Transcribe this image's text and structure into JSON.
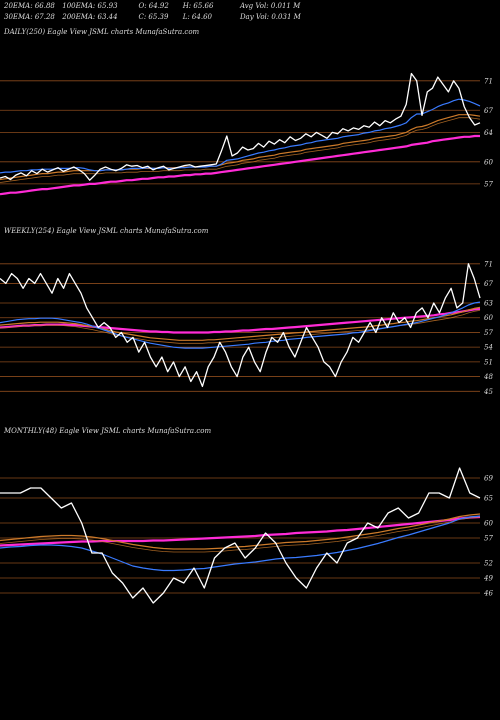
{
  "header": {
    "row1": [
      "20EMA: 66.88",
      "100EMA: 65.93",
      "O: 64.92",
      "H: 65.66",
      "Avg Vol: 0.011 M"
    ],
    "row2": [
      "30EMA: 67.28",
      "200EMA: 63.44",
      "C: 65.39",
      "L: 64.60",
      "Day Vol: 0.031 M"
    ]
  },
  "colors": {
    "background": "#000000",
    "price": "#ffffff",
    "ema_fast": "#3a7bff",
    "ema_slow": "#cc7a2a",
    "ema_long": "#ff2bd6",
    "grid": "#8a4a1c"
  },
  "chart_data": [
    {
      "type": "line",
      "name": "daily",
      "label": "DAILY(250) Eagle  View  JSML  charts MunafaSutra.com",
      "ylim": [
        54,
        76
      ],
      "yticks": [
        71,
        67,
        64,
        60,
        57
      ],
      "grid": true,
      "series": [
        {
          "role": "price",
          "color": "#ffffff",
          "values": [
            57.8,
            58.0,
            57.6,
            58.2,
            58.5,
            58.1,
            58.8,
            58.4,
            59.0,
            58.6,
            58.9,
            59.2,
            58.7,
            59.0,
            59.3,
            58.9,
            58.4,
            57.5,
            58.2,
            59.0,
            59.3,
            59.0,
            58.8,
            59.1,
            59.6,
            59.4,
            59.5,
            59.2,
            59.4,
            58.9,
            59.2,
            59.4,
            58.9,
            59.1,
            59.3,
            59.5,
            59.6,
            59.3,
            59.4,
            59.5,
            59.6,
            59.7,
            61.5,
            63.5,
            60.8,
            61.2,
            62.0,
            61.6,
            61.8,
            62.5,
            62.0,
            62.8,
            62.4,
            63.0,
            62.6,
            63.4,
            62.9,
            63.2,
            63.8,
            63.4,
            64.0,
            63.6,
            63.2,
            64.0,
            63.8,
            64.5,
            64.2,
            64.6,
            64.4,
            64.9,
            64.7,
            65.4,
            64.9,
            65.6,
            65.3,
            65.8,
            66.2,
            67.8,
            72.0,
            71.0,
            66.3,
            69.5,
            70.0,
            71.5,
            70.5,
            69.5,
            71.0,
            70.0,
            67.5,
            66.0,
            65.0,
            65.3
          ]
        },
        {
          "role": "ema_fast",
          "color": "#3a7bff",
          "values": [
            58.5,
            58.6,
            58.6,
            58.7,
            58.8,
            58.8,
            58.9,
            58.9,
            59.0,
            59.0,
            59.0,
            59.1,
            59.1,
            59.1,
            59.2,
            59.2,
            59.1,
            58.9,
            58.8,
            58.8,
            58.9,
            58.9,
            58.9,
            58.9,
            59.0,
            59.1,
            59.1,
            59.1,
            59.2,
            59.1,
            59.1,
            59.2,
            59.1,
            59.1,
            59.2,
            59.2,
            59.3,
            59.3,
            59.3,
            59.3,
            59.4,
            59.4,
            59.7,
            60.2,
            60.3,
            60.4,
            60.6,
            60.8,
            61.0,
            61.2,
            61.3,
            61.5,
            61.6,
            61.8,
            61.9,
            62.1,
            62.2,
            62.3,
            62.5,
            62.6,
            62.8,
            62.9,
            63.0,
            63.1,
            63.2,
            63.4,
            63.5,
            63.6,
            63.7,
            63.9,
            64.0,
            64.2,
            64.3,
            64.5,
            64.6,
            64.8,
            65.0,
            65.3,
            66.0,
            66.5,
            66.5,
            66.8,
            67.1,
            67.5,
            67.8,
            68.0,
            68.3,
            68.5,
            68.4,
            68.2,
            67.9,
            67.6
          ]
        },
        {
          "role": "ema_slow",
          "color": "#cc7a2a",
          "values": [
            57.6,
            57.7,
            57.8,
            57.9,
            58.0,
            58.1,
            58.2,
            58.3,
            58.4,
            58.4,
            58.5,
            58.6,
            58.6,
            58.7,
            58.8,
            58.8,
            58.8,
            58.8,
            58.8,
            58.8,
            58.9,
            58.9,
            58.9,
            58.9,
            59.0,
            59.0,
            59.0,
            59.1,
            59.1,
            59.1,
            59.1,
            59.2,
            59.2,
            59.2,
            59.2,
            59.3,
            59.3,
            59.3,
            59.3,
            59.4,
            59.4,
            59.4,
            59.6,
            59.8,
            59.9,
            60.0,
            60.2,
            60.3,
            60.4,
            60.6,
            60.7,
            60.8,
            60.9,
            61.1,
            61.2,
            61.3,
            61.4,
            61.5,
            61.7,
            61.8,
            61.9,
            62.0,
            62.1,
            62.2,
            62.3,
            62.5,
            62.6,
            62.7,
            62.8,
            62.9,
            63.0,
            63.2,
            63.3,
            63.4,
            63.5,
            63.6,
            63.8,
            64.0,
            64.4,
            64.7,
            64.8,
            65.0,
            65.3,
            65.6,
            65.8,
            66.0,
            66.2,
            66.4,
            66.4,
            66.4,
            66.3,
            66.2
          ]
        },
        {
          "role": "ema_long",
          "color": "#ff2bd6",
          "values": [
            55.6,
            55.7,
            55.8,
            55.8,
            55.9,
            56.0,
            56.1,
            56.2,
            56.3,
            56.3,
            56.4,
            56.5,
            56.6,
            56.7,
            56.8,
            56.8,
            56.9,
            57.0,
            57.0,
            57.1,
            57.2,
            57.3,
            57.3,
            57.4,
            57.5,
            57.5,
            57.6,
            57.7,
            57.7,
            57.8,
            57.9,
            57.9,
            58.0,
            58.0,
            58.1,
            58.2,
            58.2,
            58.3,
            58.3,
            58.4,
            58.4,
            58.5,
            58.6,
            58.7,
            58.8,
            58.9,
            59.0,
            59.1,
            59.2,
            59.3,
            59.4,
            59.5,
            59.6,
            59.7,
            59.8,
            59.9,
            60.0,
            60.1,
            60.2,
            60.3,
            60.4,
            60.5,
            60.6,
            60.7,
            60.8,
            60.9,
            61.0,
            61.1,
            61.2,
            61.3,
            61.4,
            61.5,
            61.6,
            61.7,
            61.8,
            61.9,
            62.0,
            62.1,
            62.3,
            62.4,
            62.5,
            62.6,
            62.8,
            62.9,
            63.0,
            63.1,
            63.2,
            63.3,
            63.4,
            63.4,
            63.5,
            63.5
          ]
        }
      ]
    },
    {
      "type": "line",
      "name": "weekly",
      "label": "WEEKLY(254) Eagle  View  JSML  charts MunafaSutra.com",
      "ylim": [
        42,
        73
      ],
      "yticks": [
        71,
        67,
        63,
        60,
        57,
        54,
        51,
        48,
        45
      ],
      "grid": true,
      "series": [
        {
          "role": "price",
          "color": "#ffffff",
          "values": [
            68,
            67,
            69,
            68,
            66,
            68,
            67,
            69,
            67,
            65,
            68,
            66,
            69,
            67,
            65,
            62,
            60,
            58,
            59,
            58,
            56,
            57,
            55,
            56,
            53,
            55,
            52,
            50,
            52,
            49,
            51,
            48,
            50,
            47,
            49,
            46,
            50,
            52,
            55,
            53,
            50,
            48,
            52,
            54,
            51,
            49,
            53,
            56,
            55,
            57,
            54,
            52,
            55,
            58,
            56,
            54,
            51,
            50,
            48,
            51,
            53,
            56,
            55,
            57,
            59,
            57,
            60,
            58,
            61,
            59,
            60,
            58,
            61,
            62,
            60,
            63,
            61,
            64,
            66,
            62,
            63,
            71,
            68,
            64
          ]
        },
        {
          "role": "ema_fast",
          "color": "#3a7bff",
          "values": [
            59,
            59.2,
            59.4,
            59.6,
            59.7,
            59.8,
            59.8,
            59.9,
            59.9,
            59.9,
            59.8,
            59.6,
            59.4,
            59.2,
            59.0,
            58.7,
            58.3,
            57.9,
            57.5,
            57.1,
            56.7,
            56.3,
            56.0,
            55.7,
            55.4,
            55.1,
            54.8,
            54.6,
            54.4,
            54.2,
            54.0,
            53.9,
            53.8,
            53.8,
            53.8,
            53.8,
            53.9,
            54.0,
            54.1,
            54.2,
            54.3,
            54.4,
            54.5,
            54.6,
            54.8,
            54.9,
            55.0,
            55.2,
            55.3,
            55.4,
            55.6,
            55.7,
            55.8,
            56.0,
            56.1,
            56.2,
            56.3,
            56.4,
            56.5,
            56.6,
            56.7,
            56.9,
            57.0,
            57.2,
            57.4,
            57.6,
            57.8,
            58.0,
            58.2,
            58.4,
            58.6,
            58.8,
            59.0,
            59.3,
            59.6,
            59.9,
            60.2,
            60.6,
            61.0,
            61.5,
            62.0,
            62.6,
            63.0,
            63.2
          ]
        },
        {
          "role": "ema_slow",
          "color": "#cc7a2a",
          "values": [
            58.5,
            58.6,
            58.7,
            58.8,
            58.9,
            59.0,
            59.0,
            59.1,
            59.1,
            59.1,
            59.1,
            59.0,
            58.9,
            58.8,
            58.6,
            58.4,
            58.2,
            57.9,
            57.7,
            57.4,
            57.1,
            56.9,
            56.7,
            56.5,
            56.3,
            56.1,
            55.9,
            55.8,
            55.7,
            55.6,
            55.5,
            55.4,
            55.4,
            55.4,
            55.4,
            55.4,
            55.5,
            55.5,
            55.6,
            55.7,
            55.8,
            55.9,
            56.0,
            56.1,
            56.2,
            56.3,
            56.4,
            56.5,
            56.6,
            56.7,
            56.8,
            56.9,
            57.0,
            57.1,
            57.2,
            57.3,
            57.4,
            57.5,
            57.6,
            57.7,
            57.8,
            57.9,
            58.0,
            58.1,
            58.2,
            58.4,
            58.5,
            58.7,
            58.8,
            59.0,
            59.1,
            59.3,
            59.4,
            59.6,
            59.8,
            60.0,
            60.2,
            60.4,
            60.6,
            60.9,
            61.2,
            61.6,
            61.9,
            62.1
          ]
        },
        {
          "role": "ema_long",
          "color": "#ff2bd6",
          "values": [
            58.0,
            58.1,
            58.2,
            58.3,
            58.4,
            58.4,
            58.5,
            58.5,
            58.6,
            58.6,
            58.6,
            58.6,
            58.5,
            58.5,
            58.4,
            58.3,
            58.2,
            58.1,
            58.0,
            57.9,
            57.8,
            57.7,
            57.6,
            57.5,
            57.4,
            57.3,
            57.2,
            57.2,
            57.1,
            57.1,
            57.0,
            57.0,
            57.0,
            57.0,
            57.0,
            57.0,
            57.0,
            57.1,
            57.1,
            57.2,
            57.2,
            57.3,
            57.4,
            57.4,
            57.5,
            57.6,
            57.7,
            57.7,
            57.8,
            57.9,
            58.0,
            58.1,
            58.2,
            58.3,
            58.4,
            58.5,
            58.6,
            58.7,
            58.8,
            58.9,
            59.0,
            59.1,
            59.2,
            59.3,
            59.4,
            59.5,
            59.6,
            59.7,
            59.8,
            59.9,
            60.0,
            60.1,
            60.2,
            60.3,
            60.4,
            60.5,
            60.7,
            60.8,
            61.0,
            61.1,
            61.3,
            61.5,
            61.7,
            61.8
          ]
        }
      ]
    },
    {
      "type": "line",
      "name": "monthly",
      "label": "MONTHLY(48) Eagle  View  JSML  charts MunafaSutra.com",
      "ylim": [
        43,
        73
      ],
      "yticks": [
        69,
        65,
        60,
        57,
        52,
        49,
        46
      ],
      "grid": true,
      "series": [
        {
          "role": "price",
          "color": "#ffffff",
          "values": [
            66,
            66,
            66,
            67,
            67,
            65,
            63,
            64,
            60,
            54,
            54,
            50,
            48,
            45,
            47,
            44,
            46,
            49,
            48,
            51,
            47,
            53,
            55,
            56,
            53,
            55,
            58,
            56,
            52,
            49,
            47,
            51,
            54,
            52,
            56,
            57,
            60,
            59,
            62,
            63,
            61,
            62,
            66,
            66,
            65,
            71,
            66,
            65
          ]
        },
        {
          "role": "ema_fast",
          "color": "#3a7bff",
          "values": [
            55,
            55.2,
            55.3,
            55.5,
            55.6,
            55.6,
            55.5,
            55.3,
            55.0,
            54.4,
            53.8,
            53.0,
            52.2,
            51.4,
            51.0,
            50.7,
            50.5,
            50.5,
            50.6,
            50.8,
            50.9,
            51.2,
            51.5,
            51.8,
            52.0,
            52.2,
            52.5,
            52.8,
            53.0,
            53.1,
            53.3,
            53.5,
            53.8,
            54.1,
            54.5,
            54.9,
            55.4,
            55.9,
            56.5,
            57.1,
            57.6,
            58.2,
            58.8,
            59.4,
            60.0,
            60.8,
            61.2,
            61.4
          ]
        },
        {
          "role": "ema_slow",
          "color": "#cc7a2a",
          "values": [
            56.5,
            56.7,
            56.9,
            57.1,
            57.3,
            57.4,
            57.5,
            57.5,
            57.4,
            57.2,
            56.9,
            56.5,
            56.1,
            55.7,
            55.4,
            55.1,
            54.9,
            54.8,
            54.8,
            54.8,
            54.8,
            54.9,
            55.0,
            55.2,
            55.3,
            55.5,
            55.7,
            55.9,
            56.1,
            56.2,
            56.3,
            56.5,
            56.7,
            56.9,
            57.2,
            57.5,
            57.8,
            58.1,
            58.5,
            58.9,
            59.2,
            59.6,
            60.0,
            60.4,
            60.8,
            61.3,
            61.6,
            61.8
          ]
        },
        {
          "role": "ema_long",
          "color": "#ff2bd6",
          "values": [
            55.5,
            55.6,
            55.7,
            55.8,
            55.9,
            56.0,
            56.1,
            56.2,
            56.3,
            56.3,
            56.4,
            56.4,
            56.4,
            56.4,
            56.4,
            56.5,
            56.5,
            56.6,
            56.7,
            56.8,
            56.9,
            57.0,
            57.1,
            57.2,
            57.3,
            57.4,
            57.6,
            57.7,
            57.8,
            58.0,
            58.1,
            58.2,
            58.3,
            58.5,
            58.6,
            58.8,
            59.0,
            59.2,
            59.4,
            59.6,
            59.8,
            60.0,
            60.2,
            60.4,
            60.6,
            60.9,
            61.1,
            61.2
          ]
        }
      ]
    }
  ]
}
